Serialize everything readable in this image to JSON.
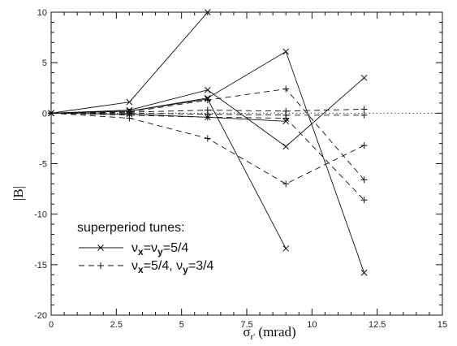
{
  "chart_data": {
    "type": "line",
    "title": "",
    "xlabel": "σ_r' (mrad)",
    "ylabel": "|B|",
    "xlim": [
      0,
      15
    ],
    "ylim": [
      -20,
      10
    ],
    "xticks": [
      0,
      2.5,
      5,
      7.5,
      10,
      12.5,
      15
    ],
    "xtick_labels": [
      "0",
      "2.5",
      "5",
      "7.5",
      "10",
      "12.5",
      "15"
    ],
    "yticks": [
      -20,
      -15,
      -10,
      -5,
      0,
      5,
      10
    ],
    "ytick_labels": [
      "-20",
      "-15",
      "-10",
      "-5",
      "0",
      "5",
      "10"
    ],
    "grid": false,
    "zero_line": "dotted",
    "legend": {
      "title": "superperiod tunes:",
      "placement": "bottom-left",
      "entries": [
        {
          "style": "solid-x",
          "text": "νx=νy=5/4",
          "main": "ν",
          "sub1": "x",
          "mid": "=ν",
          "sub2": "y",
          "tail": "=5/4"
        },
        {
          "style": "dashed-plus",
          "text": "νx=5/4, νy=3/4",
          "main": "ν",
          "sub1": "x",
          "mid": "=5/4, ν",
          "sub2": "y",
          "tail": "=3/4"
        }
      ]
    },
    "series": [
      {
        "style": "solid-x",
        "x": [
          0,
          3,
          6
        ],
        "y": [
          0,
          1.1,
          10
        ]
      },
      {
        "style": "solid-x",
        "x": [
          0,
          3,
          6,
          9,
          12
        ],
        "y": [
          0,
          0.3,
          2.3,
          -3.3,
          3.5
        ]
      },
      {
        "style": "solid-x",
        "x": [
          0,
          3,
          6,
          9,
          12
        ],
        "y": [
          0,
          0.2,
          1.5,
          6.1,
          -15.8
        ]
      },
      {
        "style": "solid-x",
        "x": [
          0,
          3,
          6,
          9
        ],
        "y": [
          0,
          0.2,
          1.4,
          -13.4
        ]
      },
      {
        "style": "solid-x",
        "x": [
          0,
          3,
          6,
          9
        ],
        "y": [
          0,
          -0.1,
          -0.4,
          -0.8
        ]
      },
      {
        "style": "dashed-plus",
        "x": [
          0,
          3,
          6,
          9,
          12
        ],
        "y": [
          0,
          0.1,
          1.3,
          2.4,
          -6.6
        ]
      },
      {
        "style": "dashed-plus",
        "x": [
          0,
          3,
          6,
          9,
          12
        ],
        "y": [
          0,
          0.1,
          0.3,
          0.2,
          0.4
        ]
      },
      {
        "style": "dashed-plus",
        "x": [
          0,
          3,
          6,
          9,
          12
        ],
        "y": [
          0,
          0,
          -0.1,
          -0.2,
          -0.2
        ]
      },
      {
        "style": "dashed-plus",
        "x": [
          0,
          3,
          6,
          9,
          12
        ],
        "y": [
          0,
          -0.5,
          -2.5,
          -7.0,
          -3.2
        ]
      },
      {
        "style": "dashed-plus",
        "x": [
          0,
          3,
          6,
          9,
          12
        ],
        "y": [
          0,
          -0.2,
          -0.4,
          -0.5,
          -8.6
        ]
      }
    ]
  }
}
